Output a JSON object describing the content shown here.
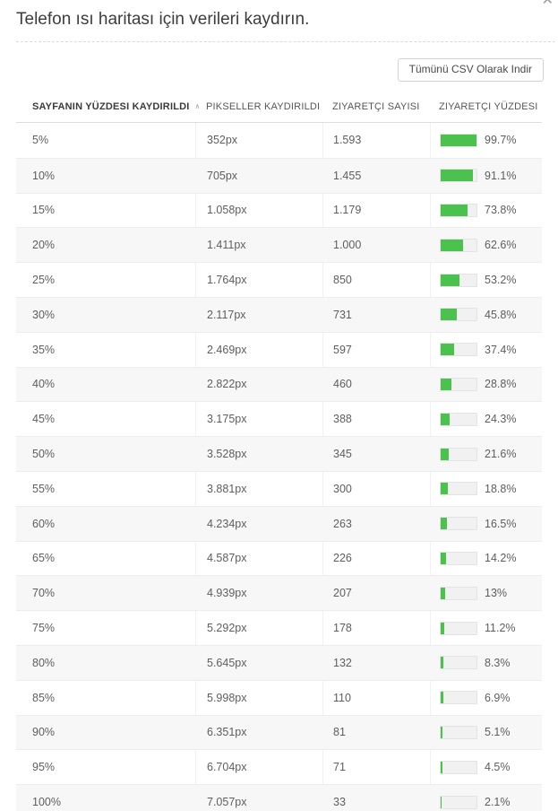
{
  "dialog": {
    "title": "Telefon ısı haritası için verileri kaydırın.",
    "close_icon_glyph": "✕",
    "download_button_label": "Tümünü CSV Olarak Indir"
  },
  "table": {
    "columns": [
      {
        "label": "SAYFANIN YÜZDESI KAYDIRILDI",
        "sorted": "asc",
        "sort_icon_glyph": "∧"
      },
      {
        "label": "PIKSELLER KAYDIRILDI"
      },
      {
        "label": "ZIYARETÇI SAYISI"
      },
      {
        "label": "ZIYARETÇI YÜZDESI"
      }
    ],
    "rows": [
      {
        "scrolled": "5%",
        "pixels": "352px",
        "visitors": "1.593",
        "visitor_pct": "99.7%",
        "bar": 99.7
      },
      {
        "scrolled": "10%",
        "pixels": "705px",
        "visitors": "1.455",
        "visitor_pct": "91.1%",
        "bar": 91.1
      },
      {
        "scrolled": "15%",
        "pixels": "1.058px",
        "visitors": "1.179",
        "visitor_pct": "73.8%",
        "bar": 73.8
      },
      {
        "scrolled": "20%",
        "pixels": "1.411px",
        "visitors": "1.000",
        "visitor_pct": "62.6%",
        "bar": 62.6
      },
      {
        "scrolled": "25%",
        "pixels": "1.764px",
        "visitors": "850",
        "visitor_pct": "53.2%",
        "bar": 53.2
      },
      {
        "scrolled": "30%",
        "pixels": "2.117px",
        "visitors": "731",
        "visitor_pct": "45.8%",
        "bar": 45.8
      },
      {
        "scrolled": "35%",
        "pixels": "2.469px",
        "visitors": "597",
        "visitor_pct": "37.4%",
        "bar": 37.4
      },
      {
        "scrolled": "40%",
        "pixels": "2.822px",
        "visitors": "460",
        "visitor_pct": "28.8%",
        "bar": 28.8
      },
      {
        "scrolled": "45%",
        "pixels": "3.175px",
        "visitors": "388",
        "visitor_pct": "24.3%",
        "bar": 24.3
      },
      {
        "scrolled": "50%",
        "pixels": "3.528px",
        "visitors": "345",
        "visitor_pct": "21.6%",
        "bar": 21.6
      },
      {
        "scrolled": "55%",
        "pixels": "3.881px",
        "visitors": "300",
        "visitor_pct": "18.8%",
        "bar": 18.8
      },
      {
        "scrolled": "60%",
        "pixels": "4.234px",
        "visitors": "263",
        "visitor_pct": "16.5%",
        "bar": 16.5
      },
      {
        "scrolled": "65%",
        "pixels": "4.587px",
        "visitors": "226",
        "visitor_pct": "14.2%",
        "bar": 14.2
      },
      {
        "scrolled": "70%",
        "pixels": "4.939px",
        "visitors": "207",
        "visitor_pct": "13%",
        "bar": 13
      },
      {
        "scrolled": "75%",
        "pixels": "5.292px",
        "visitors": "178",
        "visitor_pct": "11.2%",
        "bar": 11.2
      },
      {
        "scrolled": "80%",
        "pixels": "5.645px",
        "visitors": "132",
        "visitor_pct": "8.3%",
        "bar": 8.3
      },
      {
        "scrolled": "85%",
        "pixels": "5.998px",
        "visitors": "110",
        "visitor_pct": "6.9%",
        "bar": 6.9
      },
      {
        "scrolled": "90%",
        "pixels": "6.351px",
        "visitors": "81",
        "visitor_pct": "5.1%",
        "bar": 5.1
      },
      {
        "scrolled": "95%",
        "pixels": "6.704px",
        "visitors": "71",
        "visitor_pct": "4.5%",
        "bar": 4.5
      },
      {
        "scrolled": "100%",
        "pixels": "7.057px",
        "visitors": "33",
        "visitor_pct": "2.1%",
        "bar": 2.1
      }
    ]
  },
  "colors": {
    "bar_fill": "#4cc24e",
    "bar_track": "#f1f1f1",
    "row_alt_bg": "#f7f7f7",
    "title_text": "#3d3d3d"
  }
}
